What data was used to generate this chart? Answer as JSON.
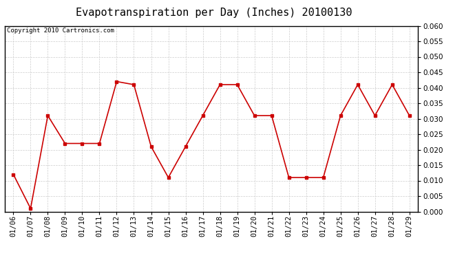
{
  "title": "Evapotranspiration per Day (Inches) 20100130",
  "copyright_text": "Copyright 2010 Cartronics.com",
  "dates": [
    "01/06",
    "01/07",
    "01/08",
    "01/09",
    "01/10",
    "01/11",
    "01/12",
    "01/13",
    "01/14",
    "01/15",
    "01/16",
    "01/17",
    "01/18",
    "01/19",
    "01/20",
    "01/21",
    "01/22",
    "01/23",
    "01/24",
    "01/25",
    "01/26",
    "01/27",
    "01/28",
    "01/29"
  ],
  "values": [
    0.012,
    0.001,
    0.031,
    0.022,
    0.022,
    0.022,
    0.042,
    0.041,
    0.021,
    0.011,
    0.021,
    0.031,
    0.041,
    0.041,
    0.031,
    0.031,
    0.011,
    0.011,
    0.011,
    0.031,
    0.041,
    0.031,
    0.041,
    0.031
  ],
  "line_color": "#cc0000",
  "marker": "s",
  "marker_size": 3,
  "ylim": [
    0.0,
    0.06
  ],
  "ytick_step": 0.005,
  "background_color": "#ffffff",
  "grid_color": "#cccccc",
  "title_fontsize": 11,
  "copyright_fontsize": 6.5,
  "tick_fontsize": 7.5,
  "figwidth": 6.9,
  "figheight": 3.75
}
